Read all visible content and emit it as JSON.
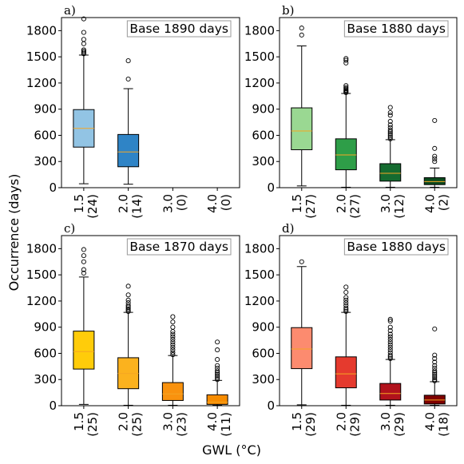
{
  "figure": {
    "ylabel": "Occurrence (days)",
    "xlabel": "GWL ($^\\circ$C)",
    "xlabel_display": "GWL (°C)"
  },
  "chart_data": [
    {
      "type": "box",
      "panel_label": "a)",
      "annotation": "Base 1890 days",
      "ylim": [
        0,
        1950
      ],
      "yticks": [
        0,
        300,
        600,
        900,
        1200,
        1500,
        1800
      ],
      "categories": [
        "1.5",
        "2.0",
        "3.0",
        "4.0"
      ],
      "counts": [
        "(24)",
        "(14)",
        "(0)",
        "(0)"
      ],
      "colors": [
        "#92c4e4",
        "#2f84c6",
        "#1f5fa0",
        "#0b3b78"
      ],
      "boxes": [
        {
          "q1": 465,
          "median": 680,
          "q3": 895,
          "whislo": 45,
          "whishi": 1520,
          "fliers": [
            1535,
            1550,
            1565,
            1580,
            1650,
            1700,
            1780,
            1935
          ]
        },
        {
          "q1": 240,
          "median": 410,
          "q3": 610,
          "whislo": 40,
          "whishi": 1135,
          "fliers": [
            1245,
            1455
          ]
        },
        null,
        null
      ]
    },
    {
      "type": "box",
      "panel_label": "b)",
      "annotation": "Base 1880 days",
      "ylim": [
        0,
        1950
      ],
      "yticks": [
        0,
        300,
        600,
        900,
        1200,
        1500,
        1800
      ],
      "categories": [
        "1.5",
        "2.0",
        "3.0",
        "4.0"
      ],
      "counts": [
        "(27)",
        "(27)",
        "(12)",
        "(2)"
      ],
      "colors": [
        "#9ad892",
        "#2e9e48",
        "#156b30",
        "#0b4a1e"
      ],
      "boxes": [
        {
          "q1": 435,
          "median": 650,
          "q3": 915,
          "whislo": 20,
          "whishi": 1625,
          "fliers": [
            1750,
            1830
          ]
        },
        {
          "q1": 205,
          "median": 375,
          "q3": 560,
          "whislo": 5,
          "whishi": 1080,
          "fliers": [
            1090,
            1100,
            1110,
            1120,
            1135,
            1150,
            1170,
            1430,
            1460,
            1480
          ]
        },
        {
          "q1": 75,
          "median": 165,
          "q3": 275,
          "whislo": 5,
          "whishi": 550,
          "fliers": [
            560,
            580,
            600,
            620,
            640,
            660,
            690,
            720,
            760,
            830,
            860,
            920
          ]
        },
        {
          "q1": 35,
          "median": 70,
          "q3": 115,
          "whislo": 5,
          "whishi": 225,
          "fliers": [
            300,
            330,
            360,
            450,
            770
          ]
        }
      ]
    },
    {
      "type": "box",
      "panel_label": "c)",
      "annotation": "Base 1870 days",
      "ylim": [
        0,
        1950
      ],
      "yticks": [
        0,
        300,
        600,
        900,
        1200,
        1500,
        1800
      ],
      "categories": [
        "1.5",
        "2.0",
        "3.0",
        "4.0"
      ],
      "counts": [
        "(25)",
        "(25)",
        "(23)",
        "(11)"
      ],
      "colors": [
        "#ffcc0a",
        "#fbb21e",
        "#f9920e",
        "#f78c00"
      ],
      "boxes": [
        {
          "q1": 420,
          "median": 620,
          "q3": 855,
          "whislo": 15,
          "whishi": 1475,
          "fliers": [
            1520,
            1560,
            1650,
            1720,
            1790
          ]
        },
        {
          "q1": 195,
          "median": 370,
          "q3": 550,
          "whislo": 5,
          "whishi": 1070,
          "fliers": [
            1080,
            1095,
            1110,
            1130,
            1150,
            1180,
            1210,
            1270,
            1370
          ]
        },
        {
          "q1": 60,
          "median": 135,
          "q3": 265,
          "whislo": 5,
          "whishi": 575,
          "fliers": [
            585,
            610,
            640,
            670,
            700,
            730,
            760,
            790,
            820,
            850,
            900,
            960,
            1020
          ]
        },
        {
          "q1": 15,
          "median": 40,
          "q3": 125,
          "whislo": 5,
          "whishi": 290,
          "fliers": [
            300,
            320,
            340,
            360,
            380,
            400,
            430,
            460,
            530,
            640,
            730
          ]
        }
      ]
    },
    {
      "type": "box",
      "panel_label": "d)",
      "annotation": "Base 1880 days",
      "ylim": [
        0,
        1950
      ],
      "yticks": [
        0,
        300,
        600,
        900,
        1200,
        1500,
        1800
      ],
      "categories": [
        "1.5",
        "2.0",
        "3.0",
        "4.0"
      ],
      "counts": [
        "(29)",
        "(29)",
        "(29)",
        "(18)"
      ],
      "colors": [
        "#fc8b6f",
        "#e53a2e",
        "#b1121c",
        "#7f0000"
      ],
      "boxes": [
        {
          "q1": 425,
          "median": 650,
          "q3": 895,
          "whislo": 10,
          "whishi": 1595,
          "fliers": [
            1650
          ]
        },
        {
          "q1": 205,
          "median": 365,
          "q3": 560,
          "whislo": 5,
          "whishi": 1070,
          "fliers": [
            1080,
            1100,
            1120,
            1150,
            1180,
            1210,
            1240,
            1300,
            1360
          ]
        },
        {
          "q1": 65,
          "median": 140,
          "q3": 255,
          "whislo": 5,
          "whishi": 530,
          "fliers": [
            540,
            560,
            580,
            610,
            640,
            670,
            700,
            730,
            760,
            790,
            820,
            860,
            900,
            970,
            990
          ]
        },
        {
          "q1": 20,
          "median": 65,
          "q3": 120,
          "whislo": 5,
          "whishi": 275,
          "fliers": [
            285,
            300,
            320,
            340,
            360,
            380,
            400,
            430,
            460,
            500,
            540,
            580,
            880
          ]
        }
      ]
    }
  ]
}
